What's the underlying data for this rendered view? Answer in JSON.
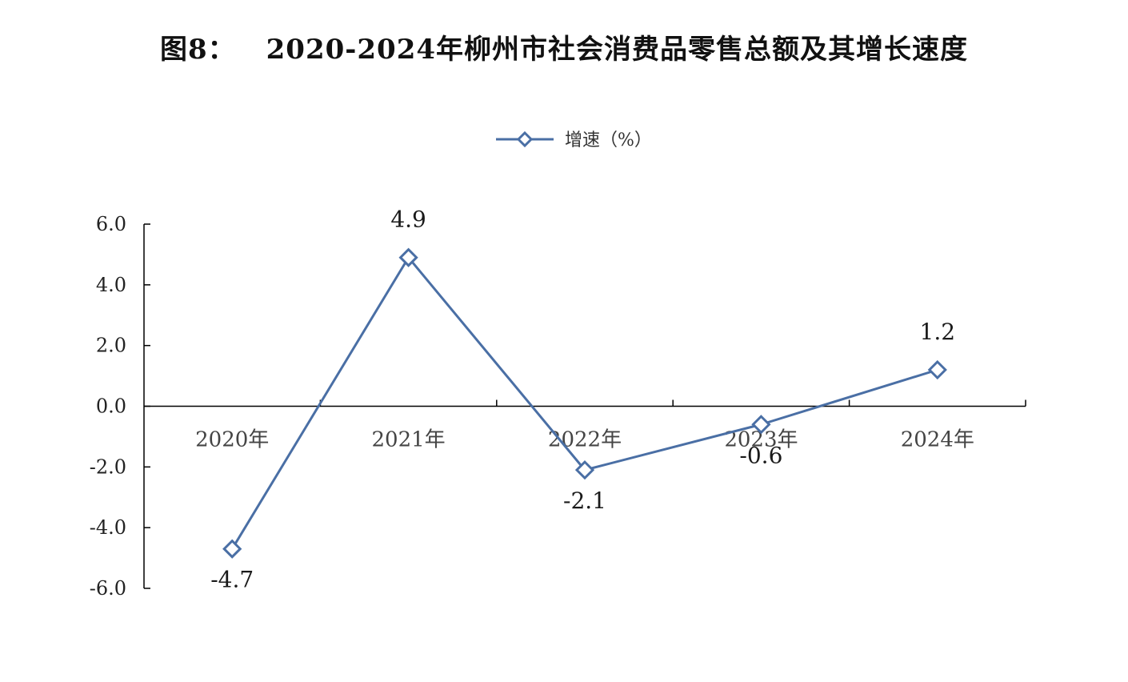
{
  "figure": {
    "label": "图8：",
    "title": "2020-2024年柳州市社会消费品零售总额及其增长速度"
  },
  "chart_data": {
    "type": "line",
    "title": "2020-2024年柳州市社会消费品零售总额及其增长速度",
    "categories": [
      "2020年",
      "2021年",
      "2022年",
      "2023年",
      "2024年"
    ],
    "series": [
      {
        "name": "增速（%）",
        "values": [
          -4.7,
          4.9,
          -2.1,
          -0.6,
          1.2
        ],
        "data_labels": [
          "-4.7",
          "4.9",
          "-2.1",
          "-0.6",
          "1.2"
        ],
        "color": "#4a6fa5",
        "marker": "diamond-open"
      }
    ],
    "yticks": [
      "6.0",
      "4.0",
      "2.0",
      "0.0",
      "-2.0",
      "-4.0",
      "-6.0"
    ],
    "ylim": [
      -6,
      6
    ],
    "xlabel": "",
    "ylabel": "",
    "grid": false,
    "legend": "top-center"
  }
}
